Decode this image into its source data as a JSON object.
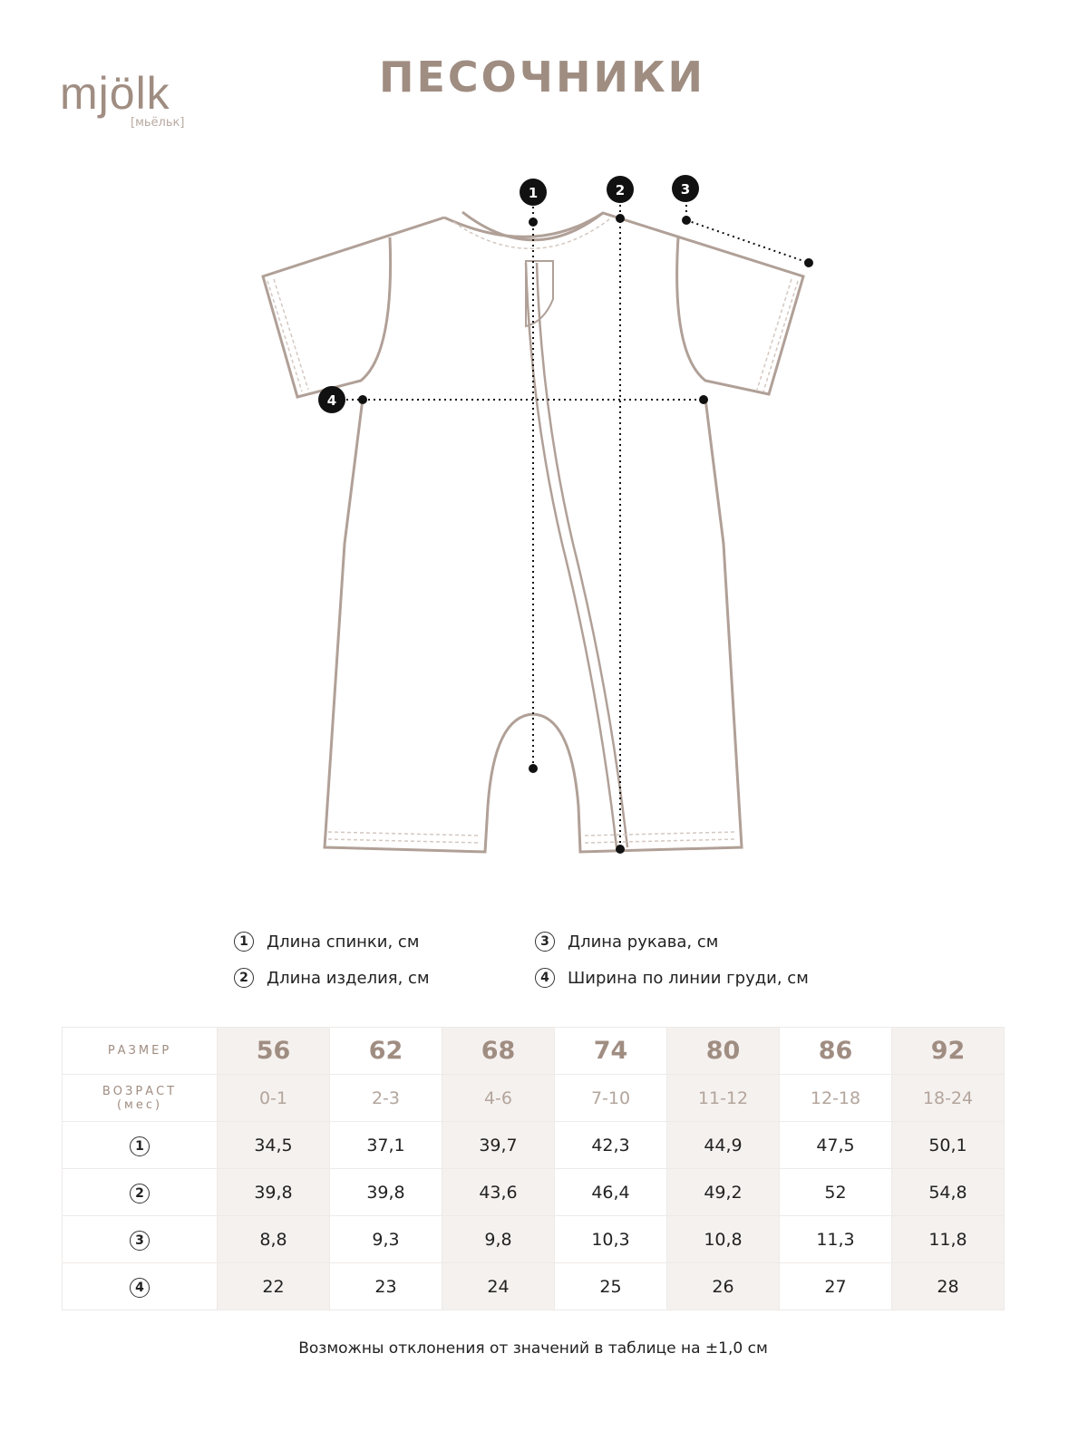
{
  "brand": {
    "logo": "mjölk",
    "logo_sub": "[мьёльк]"
  },
  "title": "ПЕСОЧНИКИ",
  "colors": {
    "accent": "#a08d82",
    "shade": "#f5f1ef"
  },
  "legend": [
    {
      "num": "1",
      "label": "Длина спинки, см"
    },
    {
      "num": "2",
      "label": "Длина изделия, см"
    },
    {
      "num": "3",
      "label": "Длина рукава, см"
    },
    {
      "num": "4",
      "label": "Ширина по линии груди, см"
    }
  ],
  "table": {
    "size_label": "РАЗМЕР",
    "age_label": "ВОЗРАСТ",
    "age_unit": "(мес)",
    "sizes": [
      "56",
      "62",
      "68",
      "74",
      "80",
      "86",
      "92"
    ],
    "ages": [
      "0-1",
      "2-3",
      "4-6",
      "7-10",
      "11-12",
      "12-18",
      "18-24"
    ],
    "rows": [
      {
        "num": "1",
        "values": [
          "34,5",
          "37,1",
          "39,7",
          "42,3",
          "44,9",
          "47,5",
          "50,1"
        ]
      },
      {
        "num": "2",
        "values": [
          "39,8",
          "39,8",
          "43,6",
          "46,4",
          "49,2",
          "52",
          "54,8"
        ]
      },
      {
        "num": "3",
        "values": [
          "8,8",
          "9,3",
          "9,8",
          "10,3",
          "10,8",
          "11,3",
          "11,8"
        ]
      },
      {
        "num": "4",
        "values": [
          "22",
          "23",
          "24",
          "25",
          "26",
          "27",
          "28"
        ]
      }
    ]
  },
  "note": "Возможны отклонения от значений в таблице на ±1,0 см"
}
